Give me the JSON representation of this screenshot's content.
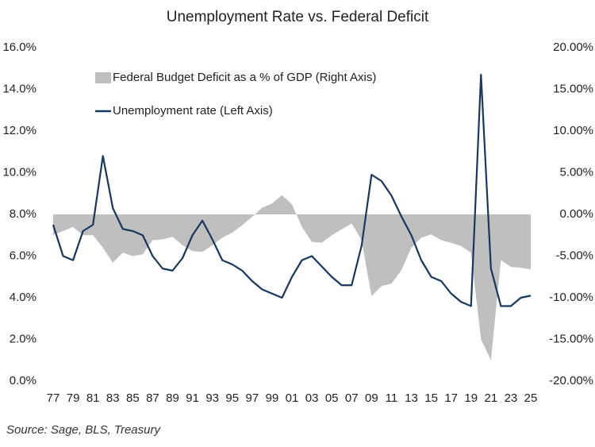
{
  "chart_data": {
    "type": "combo",
    "title": "Unemployment Rate vs. Federal Deficit",
    "source": "Source: Sage, BLS, Treasury",
    "categories": [
      "77",
      null,
      "79",
      null,
      "81",
      null,
      "83",
      null,
      "85",
      null,
      "87",
      null,
      "89",
      null,
      "91",
      null,
      "93",
      null,
      "95",
      null,
      "97",
      null,
      "99",
      null,
      "01",
      null,
      "03",
      null,
      "05",
      null,
      "07",
      null,
      "09",
      null,
      "11",
      null,
      "13",
      null,
      "15",
      null,
      "17",
      null,
      "19",
      null,
      "21",
      null,
      "23",
      null,
      "25"
    ],
    "series": [
      {
        "name": "Federal Budget Deficit as a % of GDP (Right Axis)",
        "type": "area",
        "axis": "y2",
        "color": "#bfbfbf",
        "values": [
          -2.5,
          -2.0,
          -1.5,
          -2.5,
          -2.5,
          -4.0,
          -5.8,
          -4.6,
          -5.0,
          -4.8,
          -3.1,
          -3.0,
          -2.7,
          -3.7,
          -4.4,
          -4.5,
          -3.7,
          -2.8,
          -2.2,
          -1.3,
          -0.3,
          0.8,
          1.3,
          2.3,
          1.2,
          -1.5,
          -3.3,
          -3.4,
          -2.5,
          -1.8,
          -1.1,
          -3.1,
          -9.8,
          -8.6,
          -8.3,
          -6.7,
          -4.0,
          -2.8,
          -2.4,
          -3.1,
          -3.4,
          -3.8,
          -4.6,
          -15.0,
          -17.5,
          -5.5,
          -6.3,
          -6.4,
          -6.6
        ]
      },
      {
        "name": "Unemployment rate (Left Axis)",
        "type": "line",
        "color": "#17375e",
        "values": [
          7.5,
          6.0,
          5.8,
          7.2,
          7.5,
          10.8,
          8.3,
          7.3,
          7.2,
          7.0,
          6.0,
          5.4,
          5.3,
          5.9,
          7.0,
          7.7,
          6.8,
          5.8,
          5.6,
          5.3,
          4.8,
          4.4,
          4.2,
          4.0,
          5.0,
          5.8,
          6.0,
          5.5,
          5.0,
          4.6,
          4.6,
          6.5,
          9.9,
          9.6,
          8.9,
          7.9,
          7.0,
          5.8,
          5.0,
          4.8,
          4.2,
          3.8,
          3.6,
          14.7,
          5.4,
          3.6,
          3.6,
          4.0,
          4.1
        ]
      }
    ],
    "ylim": [
      0,
      16
    ],
    "yticks": [
      {
        "value": 0,
        "label": "0.0%"
      },
      {
        "value": 2,
        "label": "2.0%"
      },
      {
        "value": 4,
        "label": "4.0%"
      },
      {
        "value": 6,
        "label": "6.0%"
      },
      {
        "value": 8,
        "label": "8.0%"
      },
      {
        "value": 10,
        "label": "10.0%"
      },
      {
        "value": 12,
        "label": "12.0%"
      },
      {
        "value": 14,
        "label": "14.0%"
      },
      {
        "value": 16,
        "label": "16.0%"
      }
    ],
    "y2lim": [
      -20,
      20
    ],
    "y2ticks": [
      {
        "value": -20,
        "label": "-20.00%"
      },
      {
        "value": -15,
        "label": "-15.00%"
      },
      {
        "value": -10,
        "label": "-10.00%"
      },
      {
        "value": -5,
        "label": "-5.00%"
      },
      {
        "value": 0,
        "label": "0.00%"
      },
      {
        "value": 5,
        "label": "5.00%"
      },
      {
        "value": 10,
        "label": "10.00%"
      },
      {
        "value": 15,
        "label": "15.00%"
      },
      {
        "value": 20,
        "label": "20.00%"
      }
    ],
    "legend": "top-left",
    "grid": false
  }
}
